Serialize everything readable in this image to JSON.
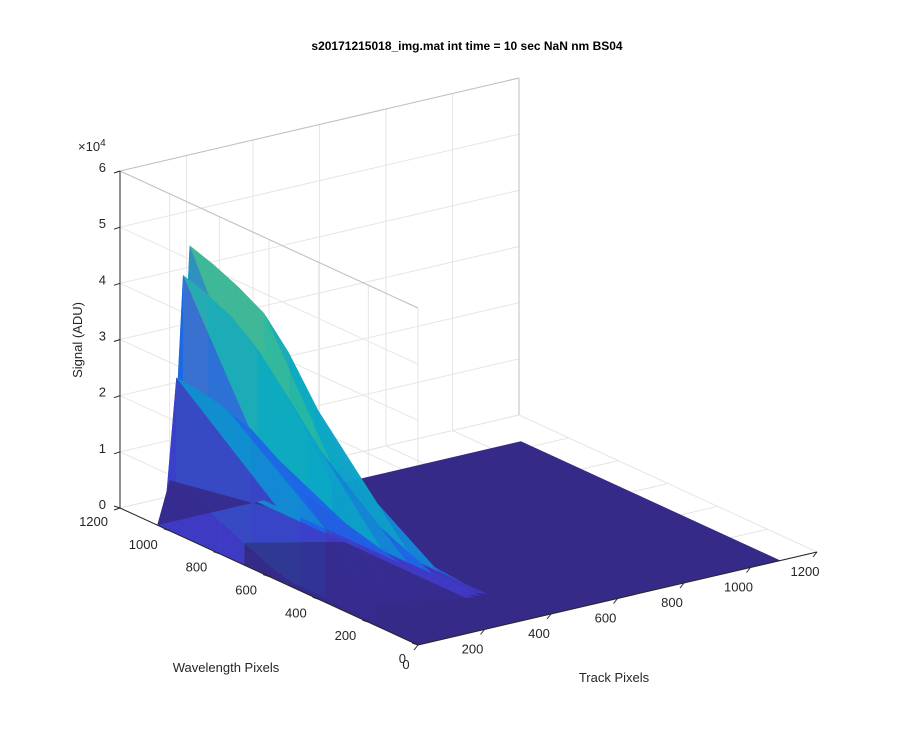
{
  "chart_data": {
    "type": "surface3d",
    "title": "s20171215018_img.mat int time = 10 sec  NaN nm BS04",
    "xlabel": "Track Pixels",
    "ylabel": "Wavelength Pixels",
    "zlabel": "Signal (ADU)",
    "z_exponent_label": "×10",
    "z_exponent_power": "4",
    "x_ticks": [
      "0",
      "200",
      "400",
      "600",
      "800",
      "1000",
      "1200"
    ],
    "y_ticks": [
      "0",
      "200",
      "400",
      "600",
      "800",
      "1000",
      "1200"
    ],
    "z_ticks": [
      "0",
      "1",
      "2",
      "3",
      "4",
      "5",
      "6"
    ],
    "xlim": [
      0,
      1200
    ],
    "ylim": [
      0,
      1200
    ],
    "zlim": [
      0,
      60000
    ],
    "grid": true,
    "colormap": "parula",
    "colors": {
      "floor": "#352a87",
      "peak": "#f9fb0e",
      "axis": "#262626",
      "grid": "#e6e6e6"
    },
    "series": [
      {
        "track": 0,
        "wavelength": [
          0,
          100,
          200,
          300,
          400,
          500,
          600,
          700,
          800,
          900,
          1000,
          1050
        ],
        "signal": [
          0,
          0,
          0,
          0,
          200,
          800,
          2000,
          4000,
          6000,
          8000,
          9000,
          0
        ]
      },
      {
        "track": 20,
        "wavelength": [
          0,
          100,
          200,
          300,
          400,
          500,
          600,
          700,
          800,
          900,
          1000,
          1050
        ],
        "signal": [
          0,
          1000,
          3000,
          7000,
          12000,
          17000,
          21000,
          24000,
          25500,
          26500,
          27000,
          0
        ]
      },
      {
        "track": 40,
        "wavelength": [
          0,
          100,
          200,
          300,
          400,
          500,
          600,
          700,
          800,
          900,
          1000,
          1050
        ],
        "signal": [
          0,
          1500,
          5000,
          12000,
          20000,
          27000,
          33000,
          38000,
          41500,
          43500,
          45000,
          0
        ]
      },
      {
        "track": 60,
        "wavelength": [
          0,
          100,
          200,
          300,
          400,
          500,
          600,
          700,
          800,
          900,
          1000,
          1050
        ],
        "signal": [
          0,
          2000,
          6000,
          14000,
          24000,
          32000,
          39000,
          44000,
          46500,
          48500,
          50000,
          0
        ]
      }
    ]
  }
}
